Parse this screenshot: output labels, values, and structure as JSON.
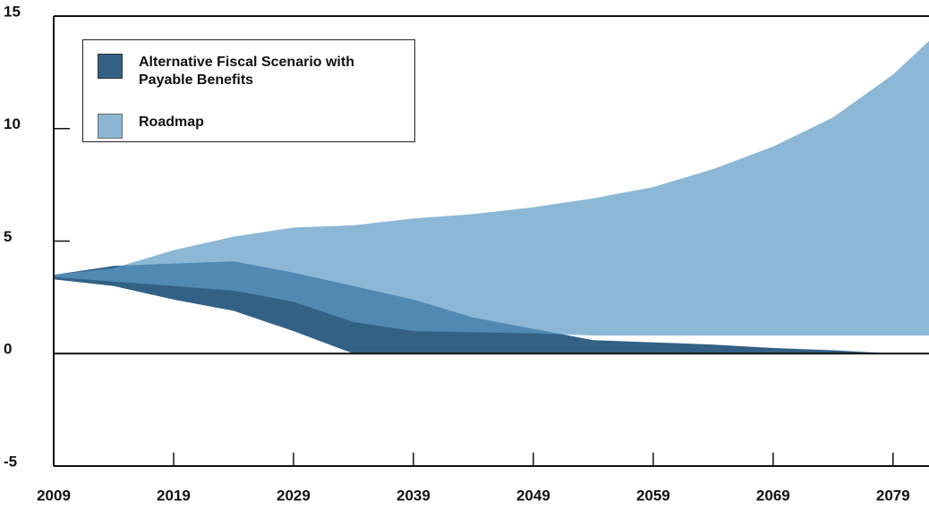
{
  "chart_data": {
    "type": "area",
    "x": [
      2009,
      2014,
      2019,
      2024,
      2029,
      2034,
      2039,
      2044,
      2049,
      2054,
      2059,
      2064,
      2069,
      2074,
      2079,
      2082
    ],
    "xlim": [
      2009,
      2082
    ],
    "xticks": [
      2009,
      2019,
      2029,
      2039,
      2049,
      2059,
      2069,
      2079
    ],
    "ylim": [
      -5,
      15
    ],
    "yticks": [
      -5,
      0,
      5,
      10,
      15
    ],
    "legend": "upper-left",
    "series": [
      {
        "name": "Alternative Fiscal Scenario with Payable Benefits",
        "color": "#336186",
        "upper": [
          3.5,
          3.9,
          4.0,
          4.1,
          3.6,
          3.0,
          2.4,
          1.6,
          1.1,
          0.6,
          0.5,
          0.4,
          0.25,
          0.15,
          0,
          0
        ],
        "lower": [
          3.3,
          3.0,
          2.4,
          1.9,
          1.0,
          0,
          0,
          0,
          0,
          0,
          0,
          0,
          0,
          0,
          0,
          0
        ]
      },
      {
        "name": "Roadmap",
        "color": "#5d9bc5",
        "upper": [
          3.5,
          3.8,
          4.6,
          5.2,
          5.6,
          5.7,
          6.0,
          6.2,
          6.5,
          6.9,
          7.4,
          8.2,
          9.2,
          10.5,
          12.4,
          13.9
        ],
        "lower": [
          3.4,
          3.2,
          3.0,
          2.8,
          2.3,
          1.4,
          1.0,
          0.95,
          0.9,
          0.8,
          0.8,
          0.8,
          0.8,
          0.8,
          0.8,
          0.8
        ]
      }
    ]
  }
}
